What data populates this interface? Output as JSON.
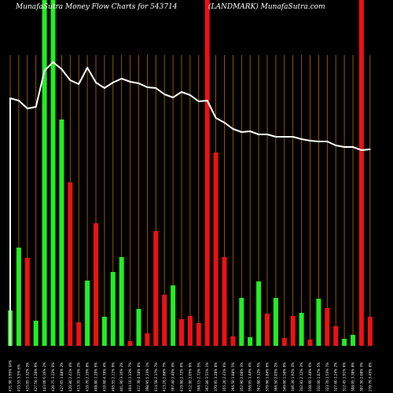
{
  "header": {
    "title": "MunafaSutra Money Flow  Charts for 543714",
    "subtitle": "(LANDMARK) MunafaSutra.com"
  },
  "chart_data": {
    "type": "bar",
    "title": "MunafaSutra Money Flow  Charts for 543714",
    "subtitle": "(LANDMARK) MunafaSutra.com",
    "grid": true,
    "ylim": [
      0,
      440
    ],
    "colors": {
      "background": "#000000",
      "grid": "#b86a00",
      "up": "#22ee22",
      "down": "#ee1111",
      "line": "#ffffff"
    },
    "categories": [
      "431.90 1.95% 04%",
      "433.55 3.5% 6%",
      "425.05 1.32% 3%",
      "427.50 1.28% 9%",
      "443.00 6.16% 2%",
      "420.75 3.22% 0%",
      "427.65 1.88% 2%",
      "420.80 2.41% 4%",
      "413.35 1.25% 2%",
      "410.70 2.33% 8%",
      "408.80 1.20% 6%",
      "410.60 4.78% 4%",
      "405.55 2.11% 9%",
      "401.90 3.16% 2%",
      "404.10 1.33% 7%",
      "417.30 4.58% 8%",
      "398.95 5.23% 1%",
      "414.58 2.17% 7%",
      "413.20 2.88% 7%",
      "397.40 2.40% 4%",
      "419.80 2.72% 6%",
      "412.90 2.05% 9%",
      "368.15 2.72% 5%",
      "367.80 3.51% 1%",
      "370.95 3.28% 8%",
      "355.20 2.41% 6%",
      "366.50 1.88% 5%",
      "352.90 2.08% 3%",
      "358.95 1.44% 4%",
      "362.80 3.12% 5%",
      "379.90 1.84% 6%",
      "366.50 2.05% 2%",
      "349.00 1.58% 9%",
      "346.30 1.92% 4%",
      "342.81 2.12% 3%",
      "338.60 1.48% 6%",
      "332.00 1.87% 5%",
      "323.70 1.53% 7%",
      "327.40 1.24% 2%",
      "312.45 1.91% 6%",
      "308.95 3.38% 8%",
      "307.50 2.08% 3%",
      "270.70 3.45% 8%"
    ],
    "series": [
      {
        "values": [
          45,
          125,
          112,
          32,
          441,
          441,
          288,
          208,
          30,
          83,
          156,
          37,
          94,
          113,
          6,
          47,
          16,
          146,
          65,
          77,
          34,
          38,
          29,
          441,
          246,
          113,
          12,
          61,
          11,
          82,
          41,
          61,
          10,
          38,
          42,
          8,
          60,
          48,
          25,
          9,
          14,
          441,
          37
        ],
        "directions": [
          "up",
          "up",
          "down",
          "up",
          "up",
          "up",
          "up",
          "down",
          "down",
          "up",
          "down",
          "up",
          "up",
          "up",
          "down",
          "up",
          "down",
          "down",
          "down",
          "up",
          "down",
          "down",
          "down",
          "down",
          "down",
          "down",
          "down",
          "up",
          "up",
          "up",
          "down",
          "up",
          "down",
          "down",
          "up",
          "down",
          "up",
          "down",
          "down",
          "up",
          "up",
          "down",
          "down"
        ]
      },
      {
        "values": [
          315,
          312,
          302,
          304,
          350,
          361,
          352,
          338,
          333,
          354,
          335,
          328,
          335,
          340,
          336,
          334,
          329,
          328,
          320,
          316,
          323,
          319,
          311,
          312,
          290,
          284,
          276,
          272,
          273,
          269,
          269,
          266,
          266,
          266,
          263,
          261,
          260,
          260,
          255,
          253,
          253,
          249,
          250
        ],
        "type": "line"
      }
    ]
  }
}
